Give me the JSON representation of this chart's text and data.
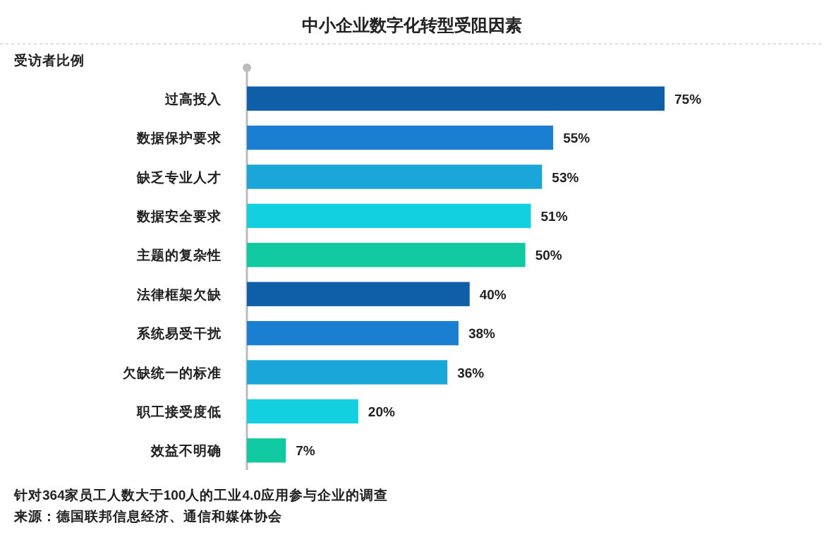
{
  "chart_data": {
    "type": "bar",
    "orientation": "horizontal",
    "title": "中小企业数字化转型受阻因素",
    "ylabel": "受访者比例",
    "categories": [
      "过高投入",
      "数据保护要求",
      "缺乏专业人才",
      "数据安全要求",
      "主题的复杂性",
      "法律框架欠缺",
      "系统易受干扰",
      "欠缺统一的标准",
      "职工接受度低",
      "效益不明确"
    ],
    "values": [
      75,
      55,
      53,
      51,
      50,
      40,
      38,
      36,
      20,
      7
    ],
    "value_labels": [
      "75%",
      "55%",
      "53%",
      "51%",
      "50%",
      "40%",
      "38%",
      "36%",
      "20%",
      "7%"
    ],
    "colors": [
      "#0f5fa8",
      "#1a7fd0",
      "#1aa6d8",
      "#12d0e0",
      "#10c9a0",
      "#0f5fa8",
      "#1a7fd0",
      "#1aa6d8",
      "#12d0e0",
      "#10c9a0"
    ],
    "annotations": [
      "针对364家员工人数大于100人的工业4.0应用参与企业的调查",
      "来源：德国联邦信息经济、通信和媒体协会"
    ]
  }
}
